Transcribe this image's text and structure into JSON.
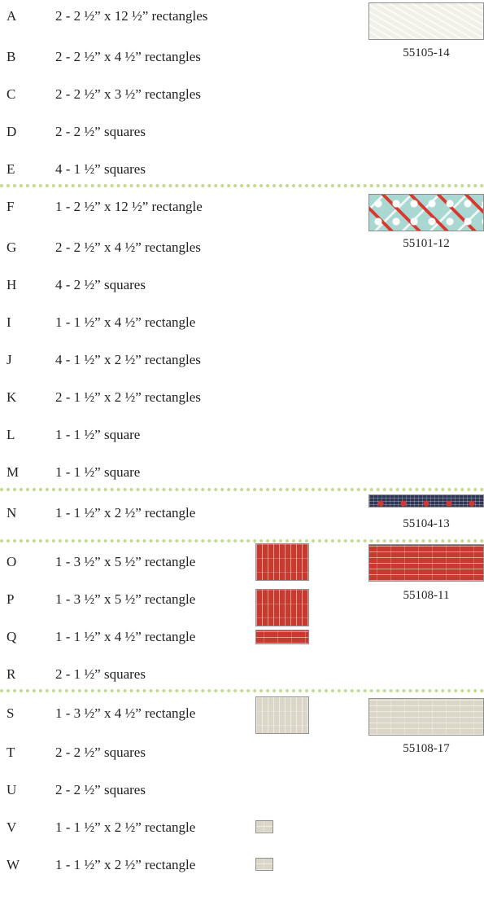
{
  "groups": [
    {
      "code": "55105-14",
      "pieces": [
        {
          "letter": "A",
          "text": "2 - 2 ½” x 12 ½” rectangles"
        },
        {
          "letter": "B",
          "text": "2 - 2 ½” x 4 ½” rectangles"
        },
        {
          "letter": "C",
          "text": "2 - 2 ½” x 3 ½” rectangles"
        },
        {
          "letter": "D",
          "text": "2 - 2 ½” squares"
        },
        {
          "letter": "E",
          "text": "4 - 1 ½” squares"
        }
      ]
    },
    {
      "code": "55101-12",
      "pieces": [
        {
          "letter": "F",
          "text": "1 - 2 ½” x 12 ½” rectangle"
        },
        {
          "letter": "G",
          "text": "2 - 2 ½” x 4 ½” rectangles"
        },
        {
          "letter": "H",
          "text": "4 - 2 ½” squares"
        },
        {
          "letter": "I",
          "text": "1 - 1 ½” x 4 ½” rectangle"
        },
        {
          "letter": "J",
          "text": "4 - 1 ½” x 2 ½” rectangles"
        },
        {
          "letter": "K",
          "text": "2 - 1 ½” x 2 ½” rectangles"
        },
        {
          "letter": "L",
          "text": "1 - 1 ½” square"
        },
        {
          "letter": "M",
          "text": "1 - 1 ½” square"
        }
      ]
    },
    {
      "code": "55104-13",
      "pieces": [
        {
          "letter": "N",
          "text": "1 - 1 ½” x 2 ½” rectangle"
        }
      ]
    },
    {
      "code": "55108-11",
      "pieces": [
        {
          "letter": "O",
          "text": "1 - 3 ½” x 5 ½” rectangle"
        },
        {
          "letter": "P",
          "text": "1 - 3 ½” x 5 ½” rectangle"
        },
        {
          "letter": "Q",
          "text": "1 - 1 ½” x 4 ½” rectangle"
        },
        {
          "letter": "R",
          "text": "2 - 1 ½” squares"
        }
      ]
    },
    {
      "code": "55108-17",
      "pieces": [
        {
          "letter": "S",
          "text": "1 - 3 ½” x 4 ½” rectangle"
        },
        {
          "letter": "T",
          "text": "2 - 2 ½” squares"
        },
        {
          "letter": "U",
          "text": "2 - 2 ½” squares"
        },
        {
          "letter": "V",
          "text": "1 - 1 ½” x 2 ½” rectangle"
        },
        {
          "letter": "W",
          "text": "1 - 1 ½” x 2 ½” rectangle"
        }
      ]
    }
  ],
  "colors": {
    "divider": "#c3dc8c",
    "text": "#231f20",
    "fabric_55105_14": "#f2f1e7",
    "fabric_55101_12": "#a9d8d2",
    "fabric_55104_13": "#2f3655",
    "fabric_55108_11": "#c73a2f",
    "fabric_55108_17": "#dcd6c8"
  }
}
